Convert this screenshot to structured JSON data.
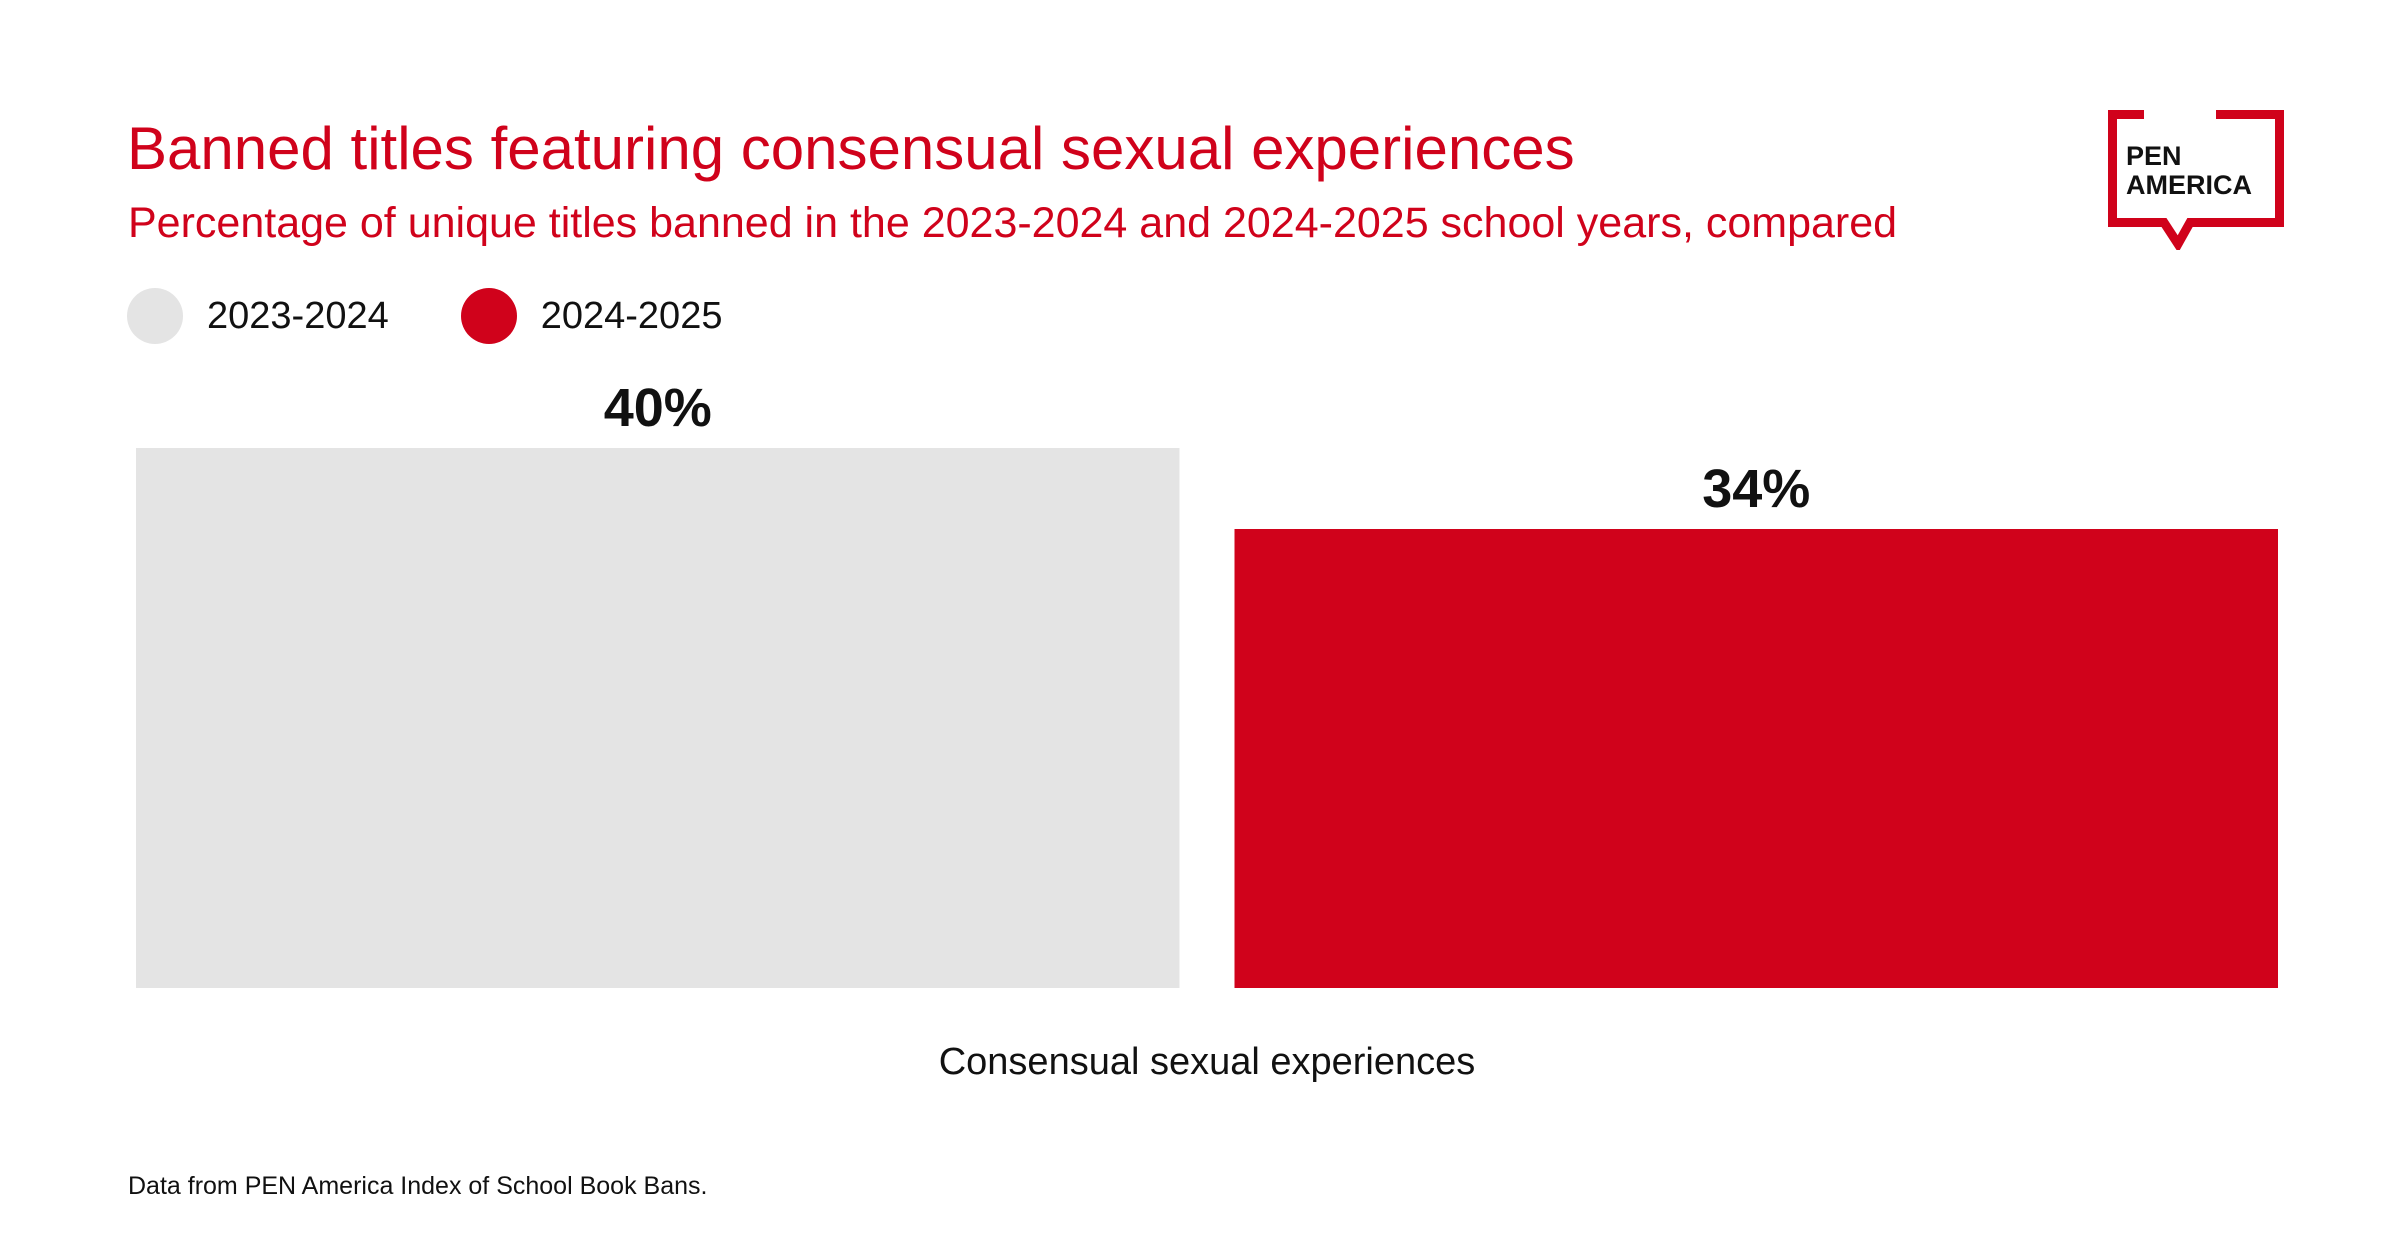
{
  "header": {
    "title": "Banned titles featuring consensual sexual experiences",
    "subtitle": "Percentage of unique titles banned in the 2023-2024 and 2024-2025 school years, compared"
  },
  "legend": [
    {
      "label": "2023-2024",
      "color": "#e4e4e4"
    },
    {
      "label": "2024-2025",
      "color": "#d0021b"
    }
  ],
  "logo": {
    "line1": "PEN",
    "line2": "AMERICA",
    "color": "#d0021b"
  },
  "source": "Data from PEN America Index of School Book Bans.",
  "chart_data": {
    "type": "bar",
    "categories": [
      "Consensual sexual experiences"
    ],
    "series": [
      {
        "name": "2023-2024",
        "values": [
          40
        ],
        "color": "#e4e4e4",
        "data_labels": [
          "40%"
        ]
      },
      {
        "name": "2024-2025",
        "values": [
          34
        ],
        "color": "#d0021b",
        "data_labels": [
          "34%"
        ]
      }
    ],
    "title": "Banned titles featuring consensual sexual experiences",
    "subtitle": "Percentage of unique titles banned in the 2023-2024 and 2024-2025 school years, compared",
    "xlabel": "Consensual sexual experiences",
    "ylabel": "",
    "ylim": [
      0,
      40
    ],
    "grid": false,
    "legend_position": "top-left"
  }
}
